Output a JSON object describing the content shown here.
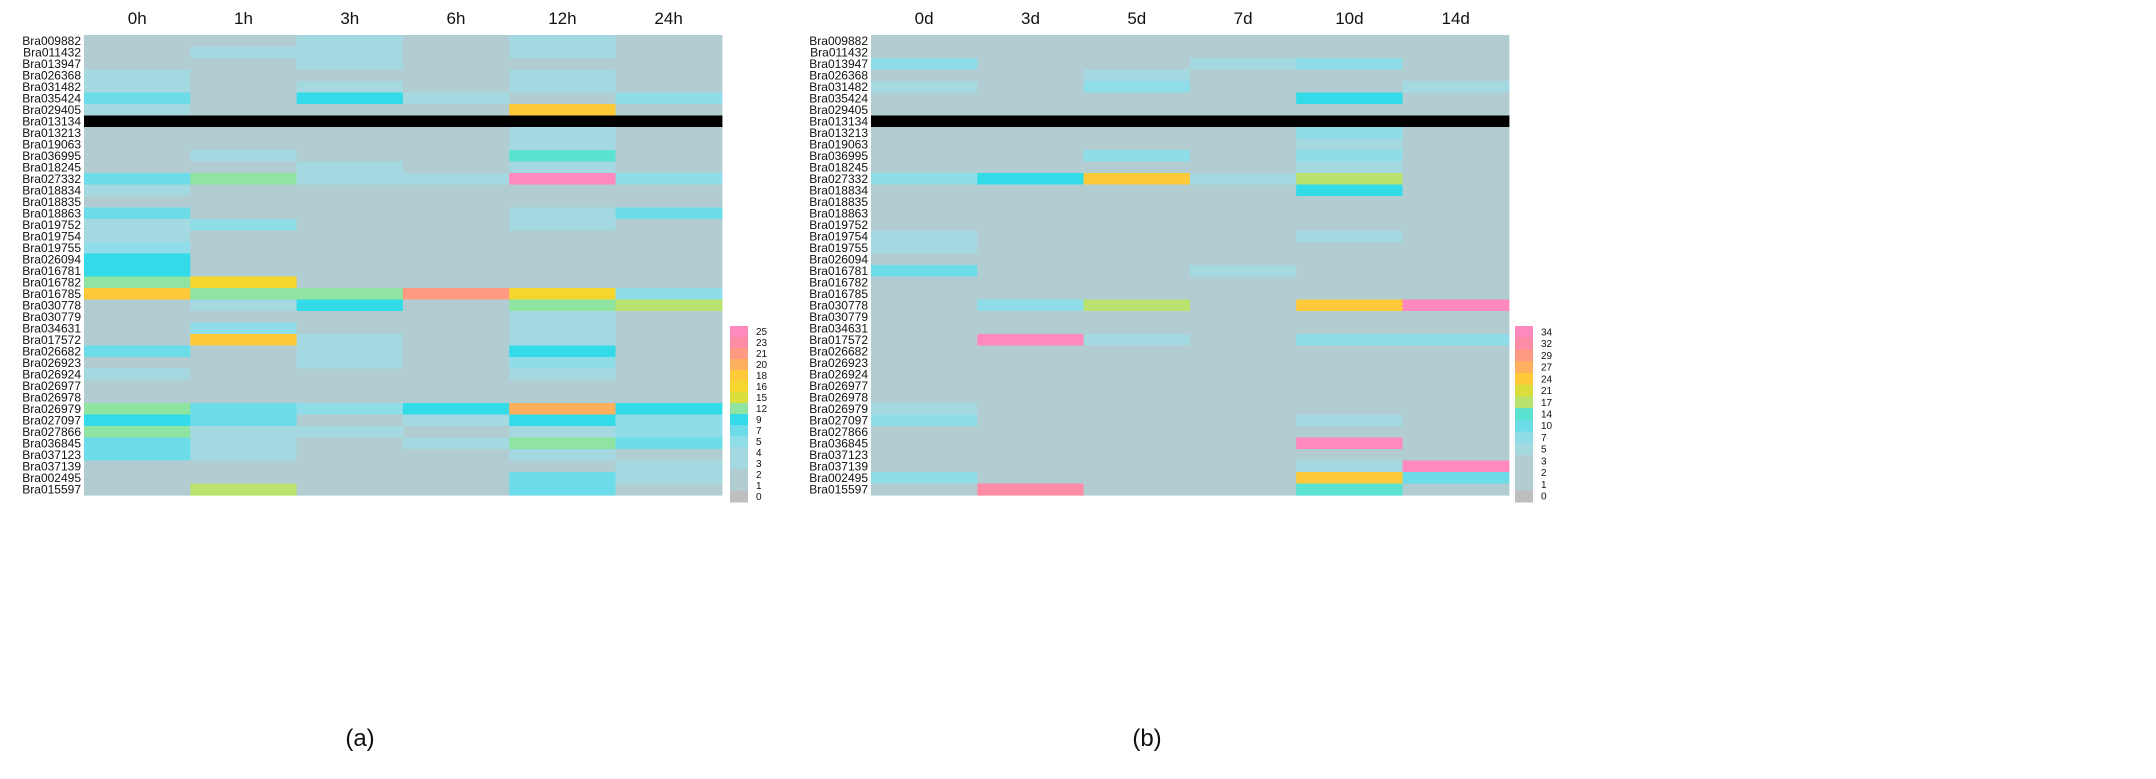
{
  "colors": {
    "background": "#ffffff",
    "separator": "#000000",
    "palette": [
      "#bfbfbf",
      "#b2cdd2",
      "#a4d9e1",
      "#8fdde8",
      "#6cdde8",
      "#33dbe8",
      "#59e3d0",
      "#8ee4a0",
      "#b9e36e",
      "#dcde3e",
      "#f5d62f",
      "#ffca3a",
      "#ffb05e",
      "#ff9a82",
      "#ff8ca6",
      "#ff88bd"
    ]
  },
  "chart_data": [
    {
      "type": "heatmap",
      "panel_label": "(a)",
      "title": "",
      "columns": [
        "0h",
        "1h",
        "3h",
        "6h",
        "12h",
        "24h"
      ],
      "rows": [
        "Bra009882",
        "Bra011432",
        "Bra013947",
        "Bra026368",
        "Bra031482",
        "Bra035424",
        "Bra029405",
        "Bra013134",
        "Bra013213",
        "Bra019063",
        "Bra036995",
        "Bra018245",
        "Bra027332",
        "Bra018834",
        "Bra018835",
        "Bra018863",
        "Bra019752",
        "Bra019754",
        "Bra019755",
        "Bra026094",
        "Bra016781",
        "Bra016782",
        "Bra016785",
        "Bra030778",
        "Bra030779",
        "Bra034631",
        "Bra017572",
        "Bra026682",
        "Bra026923",
        "Bra026924",
        "Bra026977",
        "Bra026978",
        "Bra026979",
        "Bra027097",
        "Bra027866",
        "Bra036845",
        "Bra037123",
        "Bra037139",
        "Bra002495",
        "Bra015597"
      ],
      "separator_row": "Bra013134",
      "legend_ticks": [
        "25",
        "23",
        "21",
        "20",
        "18",
        "16",
        "15",
        "12",
        "9",
        "7",
        "5",
        "4",
        "3",
        "2",
        "1",
        "0"
      ],
      "vmax": 25,
      "values": [
        [
          2,
          1,
          3,
          2,
          3,
          1
        ],
        [
          2,
          4,
          3,
          1,
          3,
          1
        ],
        [
          2,
          2,
          3,
          1,
          2,
          2
        ],
        [
          3,
          2,
          2,
          2,
          4,
          1
        ],
        [
          3,
          2,
          4,
          1,
          3,
          1
        ],
        [
          6,
          1,
          9,
          3,
          2,
          5
        ],
        [
          3,
          1,
          1,
          1,
          18,
          1
        ],
        [
          0,
          0,
          0,
          0,
          0,
          0
        ],
        [
          1,
          1,
          1,
          1,
          3,
          1
        ],
        [
          1,
          1,
          1,
          1,
          4,
          1
        ],
        [
          1,
          3,
          1,
          1,
          10,
          1
        ],
        [
          1,
          1,
          3,
          1,
          3,
          1
        ],
        [
          6,
          12,
          3,
          4,
          25,
          5
        ],
        [
          3,
          1,
          2,
          1,
          1,
          1
        ],
        [
          1,
          1,
          1,
          1,
          1,
          1
        ],
        [
          6,
          1,
          2,
          2,
          3,
          6
        ],
        [
          3,
          5,
          1,
          1,
          3,
          1
        ],
        [
          3,
          1,
          1,
          1,
          1,
          1
        ],
        [
          5,
          1,
          1,
          1,
          1,
          1
        ],
        [
          9,
          2,
          1,
          1,
          1,
          1
        ],
        [
          9,
          2,
          2,
          2,
          2,
          2
        ],
        [
          12,
          17,
          2,
          2,
          2,
          2
        ],
        [
          18,
          12,
          12,
          22,
          16,
          5
        ],
        [
          2,
          4,
          9,
          1,
          12,
          13
        ],
        [
          1,
          1,
          1,
          1,
          3,
          2
        ],
        [
          1,
          5,
          1,
          1,
          3,
          1
        ],
        [
          1,
          18,
          3,
          1,
          3,
          1
        ],
        [
          6,
          1,
          3,
          1,
          9,
          1
        ],
        [
          2,
          2,
          3,
          1,
          5,
          1
        ],
        [
          3,
          1,
          1,
          2,
          3,
          1
        ],
        [
          1,
          1,
          1,
          1,
          1,
          1
        ],
        [
          1,
          1,
          1,
          1,
          1,
          1
        ],
        [
          12,
          6,
          5,
          9,
          20,
          9
        ],
        [
          9,
          6,
          2,
          3,
          9,
          5
        ],
        [
          12,
          3,
          3,
          2,
          3,
          5
        ],
        [
          6,
          3,
          1,
          3,
          12,
          6
        ],
        [
          6,
          3,
          1,
          1,
          3,
          2
        ],
        [
          2,
          2,
          1,
          1,
          2,
          3
        ],
        [
          2,
          2,
          2,
          2,
          6,
          3
        ],
        [
          2,
          13,
          1,
          2,
          6,
          1
        ]
      ]
    },
    {
      "type": "heatmap",
      "panel_label": "(b)",
      "title": "",
      "columns": [
        "0d",
        "3d",
        "5d",
        "7d",
        "10d",
        "14d"
      ],
      "rows": [
        "Bra009882",
        "Bra011432",
        "Bra013947",
        "Bra026368",
        "Bra031482",
        "Bra035424",
        "Bra029405",
        "Bra013134",
        "Bra013213",
        "Bra019063",
        "Bra036995",
        "Bra018245",
        "Bra027332",
        "Bra018834",
        "Bra018835",
        "Bra018863",
        "Bra019752",
        "Bra019754",
        "Bra019755",
        "Bra026094",
        "Bra016781",
        "Bra016782",
        "Bra016785",
        "Bra030778",
        "Bra030779",
        "Bra034631",
        "Bra017572",
        "Bra026682",
        "Bra026923",
        "Bra026924",
        "Bra026977",
        "Bra026978",
        "Bra026979",
        "Bra027097",
        "Bra027866",
        "Bra036845",
        "Bra037123",
        "Bra037139",
        "Bra002495",
        "Bra015597"
      ],
      "separator_row": "Bra013134",
      "legend_ticks": [
        "34",
        "32",
        "29",
        "27",
        "24",
        "21",
        "17",
        "14",
        "10",
        "7",
        "5",
        "3",
        "2",
        "1",
        "0"
      ],
      "vmax": 34,
      "values": [
        [
          2,
          1,
          3,
          1,
          1,
          1
        ],
        [
          1,
          1,
          3,
          2,
          1,
          1
        ],
        [
          7,
          2,
          3,
          4,
          7,
          1
        ],
        [
          2,
          2,
          5,
          1,
          2,
          1
        ],
        [
          4,
          1,
          7,
          1,
          2,
          4
        ],
        [
          1,
          1,
          1,
          1,
          12,
          1
        ],
        [
          1,
          3,
          1,
          1,
          1,
          1
        ],
        [
          0,
          0,
          0,
          0,
          0,
          0
        ],
        [
          1,
          1,
          1,
          1,
          7,
          1
        ],
        [
          1,
          1,
          1,
          1,
          4,
          1
        ],
        [
          1,
          1,
          7,
          1,
          6,
          2
        ],
        [
          1,
          1,
          1,
          1,
          5,
          1
        ],
        [
          7,
          12,
          24,
          4,
          17,
          2
        ],
        [
          3,
          2,
          2,
          1,
          12,
          1
        ],
        [
          1,
          1,
          1,
          1,
          1,
          1
        ],
        [
          1,
          1,
          1,
          1,
          1,
          1
        ],
        [
          3,
          3,
          1,
          1,
          2,
          2
        ],
        [
          5,
          1,
          1,
          1,
          4,
          2
        ],
        [
          5,
          1,
          3,
          1,
          2,
          2
        ],
        [
          1,
          1,
          1,
          1,
          1,
          1
        ],
        [
          10,
          1,
          3,
          4,
          1,
          3
        ],
        [
          1,
          1,
          1,
          1,
          1,
          1
        ],
        [
          1,
          1,
          1,
          1,
          1,
          1
        ],
        [
          1,
          7,
          17,
          3,
          24,
          34
        ],
        [
          1,
          1,
          1,
          1,
          2,
          2
        ],
        [
          1,
          3,
          1,
          1,
          3,
          2
        ],
        [
          3,
          34,
          5,
          3,
          7,
          7
        ],
        [
          1,
          1,
          1,
          1,
          2,
          2
        ],
        [
          1,
          1,
          1,
          1,
          1,
          1
        ],
        [
          3,
          1,
          1,
          1,
          1,
          1
        ],
        [
          1,
          1,
          1,
          1,
          2,
          1
        ],
        [
          1,
          1,
          1,
          1,
          1,
          1
        ],
        [
          4,
          2,
          1,
          1,
          3,
          2
        ],
        [
          6,
          3,
          2,
          1,
          4,
          1
        ],
        [
          1,
          1,
          1,
          1,
          2,
          1
        ],
        [
          3,
          1,
          1,
          1,
          34,
          1
        ],
        [
          3,
          1,
          1,
          1,
          2,
          1
        ],
        [
          3,
          2,
          1,
          1,
          5,
          34
        ],
        [
          6,
          1,
          3,
          3,
          24,
          10
        ],
        [
          2,
          32,
          3,
          3,
          14,
          2
        ]
      ]
    }
  ]
}
